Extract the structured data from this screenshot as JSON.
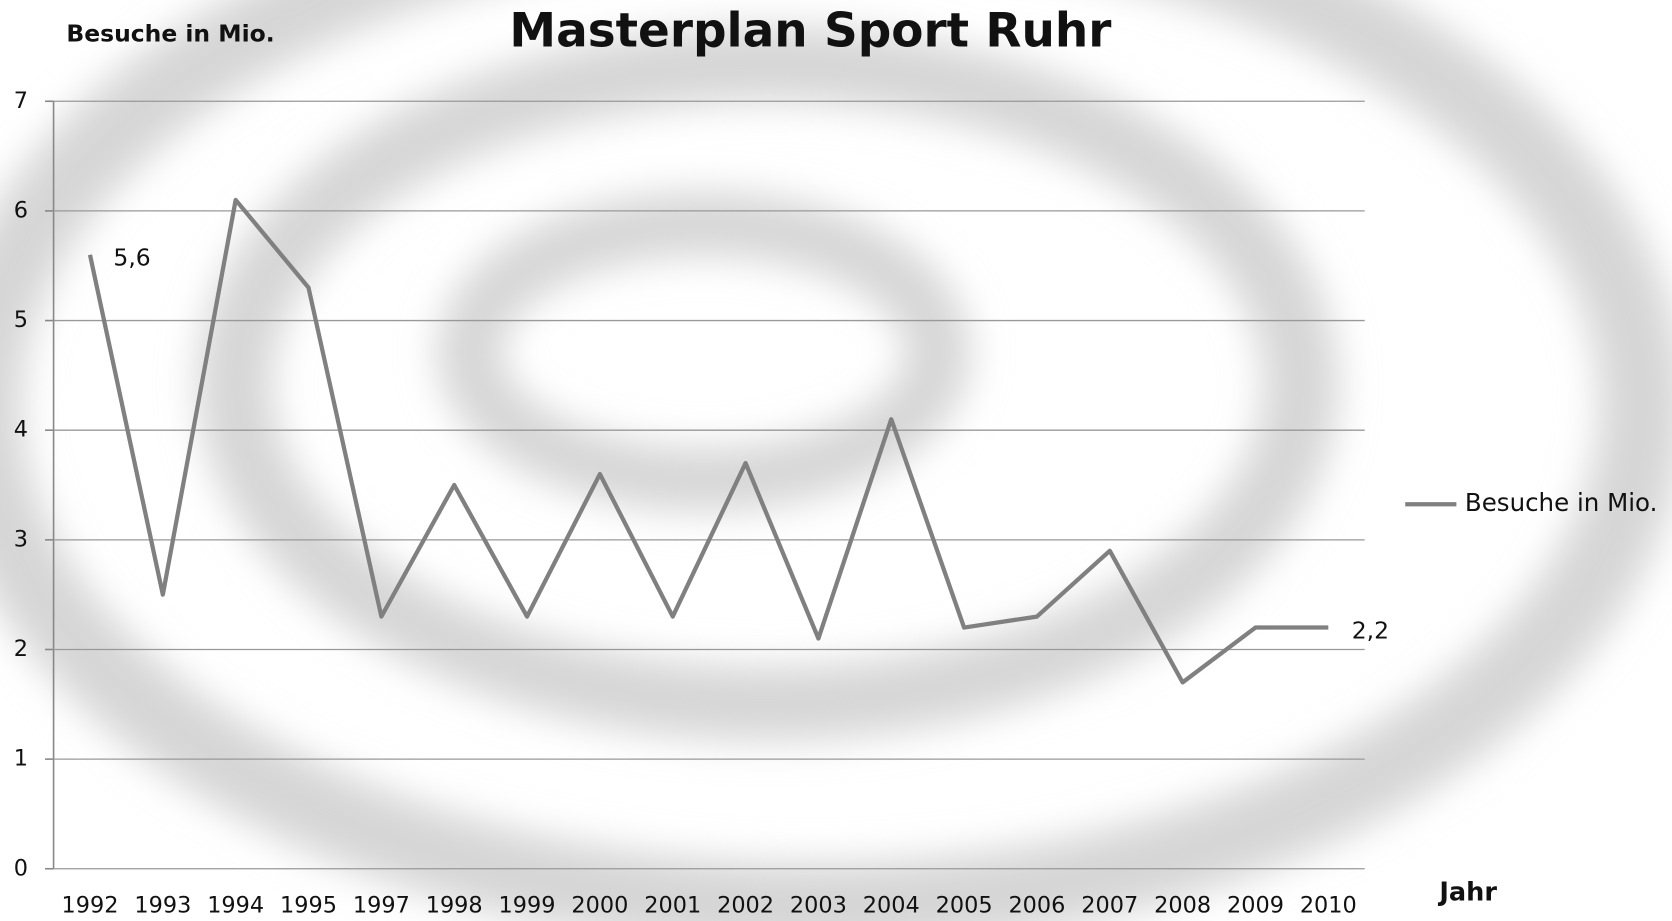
{
  "chart_data": {
    "type": "line",
    "title": "Masterplan Sport Ruhr",
    "y_axis_label": "Besuche in Mio.",
    "x_axis_label": "Jahr",
    "categories": [
      "1992",
      "1993",
      "1994",
      "1995",
      "1997",
      "1998",
      "1999",
      "2000",
      "2001",
      "2002",
      "2003",
      "2004",
      "2005",
      "2006",
      "2007",
      "2008",
      "2009",
      "2010"
    ],
    "series": [
      {
        "name": "Besuche in Mio.",
        "color": "#808080",
        "values": [
          5.6,
          2.5,
          6.1,
          5.3,
          2.3,
          3.5,
          2.3,
          3.6,
          2.3,
          3.7,
          2.1,
          4.1,
          2.2,
          2.3,
          2.9,
          1.7,
          2.2,
          2.2
        ],
        "value_labels": [
          "5,6",
          null,
          null,
          null,
          null,
          null,
          null,
          null,
          null,
          null,
          null,
          null,
          null,
          null,
          null,
          null,
          null,
          "2,2"
        ]
      }
    ],
    "ylim": [
      0,
      7
    ],
    "yticks": [
      0,
      1,
      2,
      3,
      4,
      5,
      6,
      7
    ],
    "grid": true,
    "legend": "right"
  }
}
